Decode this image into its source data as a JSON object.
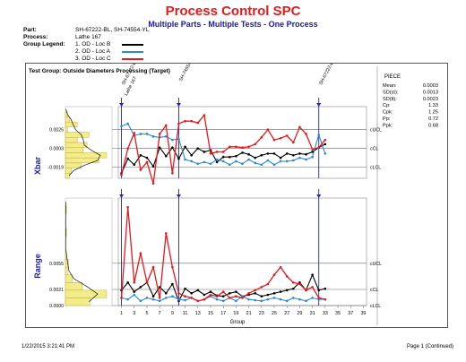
{
  "report": {
    "title": "Process Control SPC",
    "subtitle": "Multiple Parts - Multiple Tests - One Process",
    "part_label": "Part:",
    "part_value": "SH-67222-BL, SH-74554-YL",
    "process_label": "Process:",
    "process_value": "Lathe 167",
    "legend_label": "Group Legend:",
    "legend": [
      {
        "label": "1. OD - Loc B",
        "color": "#000000"
      },
      {
        "label": "2. OD - Loc A",
        "color": "#2b8ad0"
      },
      {
        "label": "3. OD - Loc C",
        "color": "#e8191c"
      }
    ],
    "test_group": "Test Group: Outside Diameters Processing (Target)",
    "footer_left": "1/22/2015  3:21:41 PM",
    "footer_right": "Page 1 (Continued)"
  },
  "stats": {
    "title": "PIECE",
    "rows": [
      {
        "label": "Mean:",
        "value": "0.0003"
      },
      {
        "label": "SD(st):",
        "value": "0.0013"
      },
      {
        "label": "SD(lt):",
        "value": "0.0023"
      },
      {
        "label": "Cp:",
        "value": "1.33"
      },
      {
        "label": "Cpk:",
        "value": "1.25"
      },
      {
        "label": "Pp:",
        "value": "0.72"
      },
      {
        "label": "Ppk:",
        "value": "0.68"
      }
    ]
  },
  "chart_data": [
    {
      "type": "line",
      "ylabel": "Xbar",
      "x": [
        1,
        2,
        3,
        4,
        5,
        6,
        7,
        8,
        9,
        10,
        11,
        12,
        13,
        14,
        15,
        16,
        17,
        18,
        19,
        20,
        21,
        22,
        23,
        24,
        25,
        26,
        27,
        28,
        29,
        30,
        31,
        32,
        33
      ],
      "ylim": [
        -0.0032,
        0.0052
      ],
      "yticks": [
        "0.0025",
        "0.0003",
        "-0.0019"
      ],
      "limits": [
        {
          "label": "cUCL",
          "value": 0.0025
        },
        {
          "label": "cCL",
          "value": 0.0003
        },
        {
          "label": "cLCL",
          "value": -0.0019
        }
      ],
      "series": [
        {
          "color": "#000000",
          "values": [
            -0.0026,
            -0.0009,
            -0.0016,
            -0.0005,
            -0.0008,
            -0.0018,
            0.0004,
            -0.0006,
            0.0004,
            -0.0009,
            0.0005,
            -0.0005,
            0.0003,
            -0.0001,
            0.0001,
            -0.0013,
            -0.0007,
            -0.0007,
            -0.0006,
            -0.0002,
            -0.0004,
            -0.0008,
            -0.0005,
            -0.0003,
            -0.0003,
            -0.0008,
            -0.0003,
            -0.0005,
            -0.0003,
            -0.0004,
            -0.0001,
            0.0004,
            0.0008
          ]
        },
        {
          "color": "#2b8ad0",
          "values": [
            0.0029,
            0.0032,
            0.0018,
            0.002,
            0.002,
            0.0017,
            0.0016,
            0.0017,
            0.0013,
            0.0014,
            -0.001,
            -0.0012,
            -0.0015,
            -0.0013,
            -0.0015,
            -0.001,
            -0.0012,
            -0.0016,
            -0.0012,
            -0.0015,
            -0.001,
            -0.0014,
            -0.0016,
            -0.0011,
            -0.0016,
            -0.0012,
            -0.0012,
            -0.0011,
            -0.0008,
            -0.001,
            -0.0007,
            0.0019,
            -0.0003
          ]
        },
        {
          "color": "#e8191c",
          "values": [
            -0.0028,
            0.0003,
            0.0021,
            -0.0022,
            -0.0013,
            -0.0038,
            0.002,
            0.003,
            -0.0026,
            0.0032,
            0.0035,
            0.0035,
            0.0033,
            0.0042,
            -0.0003,
            -0.0001,
            -0.0001,
            0.0005,
            0.0005,
            0.0004,
            0.0005,
            0.0008,
            0.0016,
            0.0025,
            0.0013,
            0.0015,
            0.0018,
            0.001,
            0.0028,
            0.002,
            0.0002,
            0.0004,
            0.0013
          ]
        }
      ],
      "annotations": [
        {
          "label": "Lathe 167",
          "x": 1
        },
        {
          "label": "SH-67222-BL",
          "x": 1
        },
        {
          "label": "SH-74554-YL",
          "x": 10
        },
        {
          "label": "SH-67222-BL",
          "x": 32
        }
      ]
    },
    {
      "type": "line",
      "ylabel": "Range",
      "xlabel": "Group",
      "x": [
        1,
        2,
        3,
        4,
        5,
        6,
        7,
        8,
        9,
        10,
        11,
        12,
        13,
        14,
        15,
        16,
        17,
        18,
        19,
        20,
        21,
        22,
        23,
        24,
        25,
        26,
        27,
        28,
        29,
        30,
        31,
        32,
        33
      ],
      "xticks": [
        1,
        3,
        5,
        7,
        9,
        11,
        13,
        15,
        17,
        19,
        21,
        23,
        25,
        27,
        29,
        31,
        33,
        35,
        37,
        39
      ],
      "ylim": [
        0,
        0.014
      ],
      "yticks": [
        "0.0055",
        "0.0021",
        "0.0000"
      ],
      "limits": [
        {
          "label": "cUCL",
          "value": 0.0055
        },
        {
          "label": "cCL",
          "value": 0.0021
        },
        {
          "label": "cLCL",
          "value": 0.0
        }
      ],
      "series": [
        {
          "color": "#000000",
          "values": [
            0.002,
            0.003,
            0.0018,
            0.0024,
            0.003,
            0.0012,
            0.0024,
            0.0016,
            0.0028,
            0.0006,
            0.0022,
            0.0016,
            0.002,
            0.0014,
            0.0018,
            0.0013,
            0.0012,
            0.0016,
            0.0018,
            0.0012,
            0.0014,
            0.0016,
            0.0012,
            0.0014,
            0.0016,
            0.0018,
            0.002,
            0.0022,
            0.003,
            0.002,
            0.004,
            0.002,
            0.0022
          ]
        },
        {
          "color": "#2b8ad0",
          "values": [
            0.001,
            0.0008,
            0.0014,
            0.0006,
            0.001,
            0.0008,
            0.0006,
            0.001,
            0.0012,
            0.0008,
            0.0007,
            0.001,
            0.0006,
            0.0008,
            0.0012,
            0.0008,
            0.0006,
            0.001,
            0.0006,
            0.0012,
            0.0008,
            0.0007,
            0.0006,
            0.0008,
            0.001,
            0.0008,
            0.0006,
            0.001,
            0.0008,
            0.0006,
            0.001,
            0.0008,
            0.0008
          ]
        },
        {
          "color": "#e8191c",
          "values": [
            0.001,
            0.0128,
            0.003,
            0.0068,
            0.003,
            0.005,
            0.001,
            0.0094,
            0.005,
            0.0016,
            0.0012,
            0.001,
            0.0006,
            0.0008,
            0.0014,
            0.0012,
            0.0018,
            0.001,
            0.0012,
            0.001,
            0.0016,
            0.002,
            0.0024,
            0.0028,
            0.004,
            0.005,
            0.0038,
            0.003,
            0.0028,
            0.002,
            0.0024,
            0.001,
            0.0008
          ]
        }
      ]
    }
  ]
}
